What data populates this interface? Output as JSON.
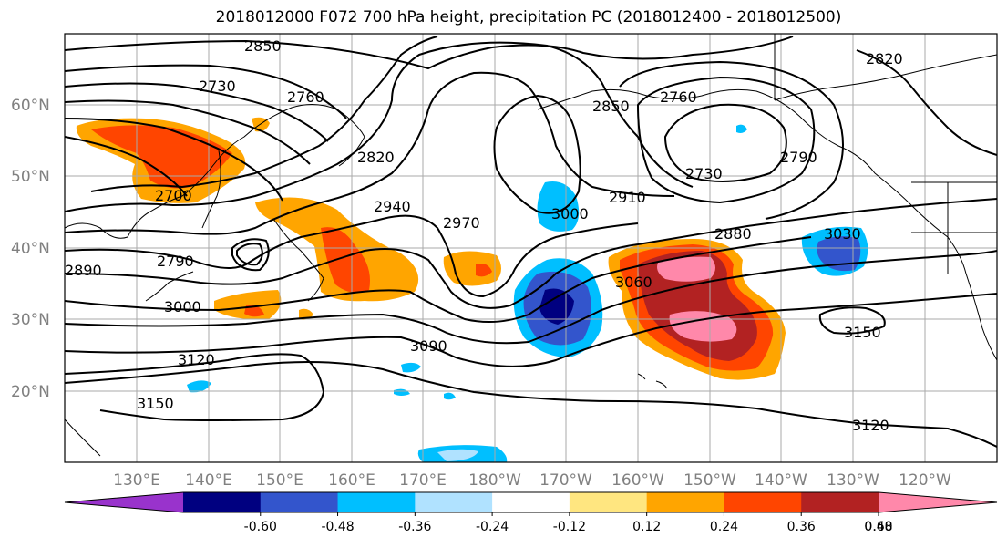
{
  "title": "2018012000 F072 700 hPa height, precipitation PC (2018012400 - 2018012500)",
  "lat_labels": [
    "60°N",
    "50°N",
    "40°N",
    "30°N",
    "20°N"
  ],
  "lon_labels": [
    "130°E",
    "140°E",
    "150°E",
    "160°E",
    "170°E",
    "180°W",
    "170°W",
    "160°W",
    "150°W",
    "140°W",
    "130°W",
    "120°W"
  ],
  "contour_labels": [
    "2850",
    "2730",
    "2760",
    "2820",
    "2700",
    "2940",
    "2970",
    "2790",
    "2890",
    "3000",
    "3120",
    "3150",
    "3090",
    "3060",
    "2880",
    "3030",
    "3150",
    "3120",
    "2850",
    "2760",
    "2910",
    "3000",
    "2730",
    "2790",
    "2820"
  ],
  "colorbar": {
    "colors": [
      "#9933cc",
      "#000080",
      "#3355cc",
      "#00bfff",
      "#b0e2ff",
      "#ffffff",
      "#ffe680",
      "#ffa500",
      "#ff4500",
      "#b22222",
      "#ff88aa"
    ],
    "tick_labels": [
      "-0.60",
      "-0.48",
      "-0.36",
      "-0.24",
      "-0.12",
      "0.12",
      "0.24",
      "0.36",
      "0.48",
      "0.60"
    ]
  }
}
